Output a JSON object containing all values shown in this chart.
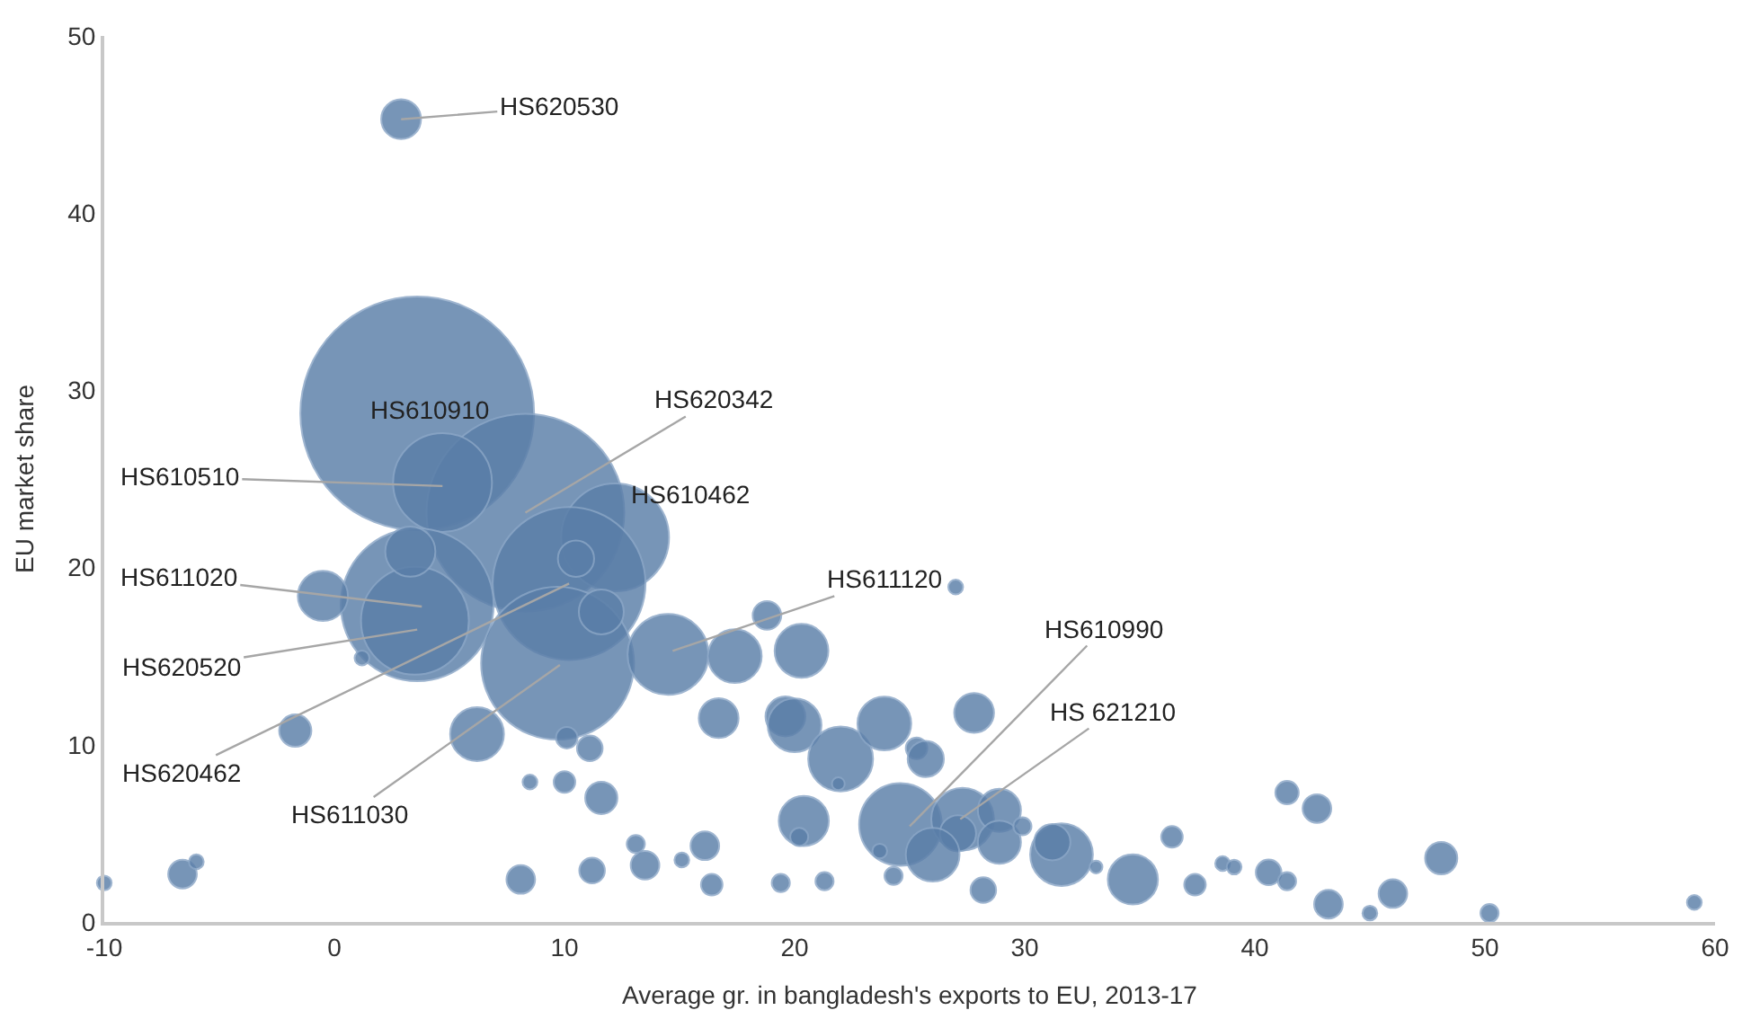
{
  "chart_data": {
    "type": "bubble",
    "xlabel": "Average gr. in bangladesh's exports to EU, 2013-17",
    "ylabel": "EU market share",
    "xlim": [
      -10,
      60
    ],
    "xticks": [
      -10,
      0,
      10,
      20,
      30,
      40,
      50,
      60
    ],
    "ylim": [
      0,
      50
    ],
    "yticks": [
      0,
      10,
      20,
      30,
      40,
      50
    ],
    "marker": "circle",
    "series": [
      {
        "color": "#5a7ea8",
        "x": [
          2.9,
          3.6,
          8.3,
          4.7,
          12.2,
          3.6,
          3.5,
          10.2,
          9.7,
          10.5,
          11.6,
          3.3,
          -0.5,
          1.2,
          14.5,
          17.4,
          20.3,
          18.8,
          27.0,
          -1.7,
          6.2,
          16.7,
          19.6,
          20.0,
          22.0,
          23.9,
          25.3,
          25.7,
          27.8,
          10.1,
          11.1,
          8.5,
          10.0,
          11.6,
          20.4,
          20.2,
          16.1,
          13.1,
          13.5,
          15.1,
          11.2,
          16.4,
          8.1,
          -6.6,
          -6.0,
          -10.0,
          19.4,
          21.3,
          24.6,
          27.3,
          28.9,
          28.9,
          27.1,
          26.0,
          31.6,
          31.2,
          29.9,
          33.1,
          34.7,
          36.4,
          37.4,
          38.6,
          39.1,
          40.6,
          41.4,
          41.4,
          42.7,
          43.2,
          45.0,
          46.0,
          48.1,
          50.2,
          59.1,
          21.9,
          23.7,
          24.3,
          28.2
        ],
        "values": [
          45.3,
          28.7,
          23.1,
          24.8,
          21.7,
          17.9,
          17.0,
          19.1,
          14.6,
          20.5,
          17.5,
          20.9,
          18.4,
          14.9,
          15.1,
          15.0,
          15.3,
          17.3,
          18.9,
          10.8,
          10.6,
          11.5,
          11.6,
          11.1,
          9.2,
          11.2,
          9.8,
          9.2,
          11.8,
          10.4,
          9.8,
          7.9,
          7.9,
          7.0,
          5.7,
          4.8,
          4.3,
          4.4,
          3.2,
          3.5,
          2.9,
          2.1,
          2.4,
          2.7,
          3.4,
          2.2,
          2.2,
          2.3,
          5.5,
          5.8,
          6.3,
          4.5,
          5.0,
          3.8,
          3.8,
          4.5,
          5.4,
          3.1,
          2.4,
          4.8,
          2.1,
          3.3,
          3.1,
          2.8,
          2.3,
          7.3,
          6.4,
          1.0,
          0.5,
          1.6,
          3.6,
          0.5,
          1.1,
          7.8,
          4.0,
          2.6,
          1.8
        ],
        "sizes": [
          0.029,
          1,
          0.716,
          0.179,
          0.213,
          0.428,
          0.213,
          0.428,
          0.428,
          0.024,
          0.037,
          0.046,
          0.046,
          0.004,
          0.12,
          0.053,
          0.053,
          0.015,
          0.004,
          0.019,
          0.053,
          0.029,
          0.029,
          0.053,
          0.077,
          0.053,
          0.0085,
          0.024,
          0.029,
          0.0085,
          0.012,
          0.004,
          0.0085,
          0.019,
          0.046,
          0.006,
          0.015,
          0.006,
          0.015,
          0.004,
          0.012,
          0.0085,
          0.015,
          0.015,
          0.004,
          0.004,
          0.006,
          0.006,
          0.125,
          0.072,
          0.034,
          0.034,
          0.024,
          0.053,
          0.072,
          0.024,
          0.006,
          0.003,
          0.046,
          0.0085,
          0.0085,
          0.004,
          0.004,
          0.012,
          0.006,
          0.01,
          0.015,
          0.015,
          0.004,
          0.015,
          0.019,
          0.006,
          0.004,
          0.003,
          0.004,
          0.006,
          0.012
        ]
      }
    ],
    "annotations": [
      {
        "text": "HS620530",
        "x": 2.9,
        "y": 45.3
      },
      {
        "text": "HS610910",
        "x": 3.6,
        "y": 28.7
      },
      {
        "text": "HS610510",
        "x": 4.7,
        "y": 24.6
      },
      {
        "text": "HS620342",
        "x": 8.3,
        "y": 23.1
      },
      {
        "text": "HS610462",
        "x": 12.2,
        "y": 21.7
      },
      {
        "text": "HS611020",
        "x": 3.8,
        "y": 17.8
      },
      {
        "text": "HS620520",
        "x": 3.6,
        "y": 16.5
      },
      {
        "text": "HS620462",
        "x": 10.2,
        "y": 19.1
      },
      {
        "text": "HS611030",
        "x": 9.8,
        "y": 14.5
      },
      {
        "text": "HS611120",
        "x": 14.7,
        "y": 15.3
      },
      {
        "text": "HS610990",
        "x": 25.0,
        "y": 5.4
      },
      {
        "text": "HS 621210",
        "x": 27.2,
        "y": 5.8
      }
    ]
  }
}
